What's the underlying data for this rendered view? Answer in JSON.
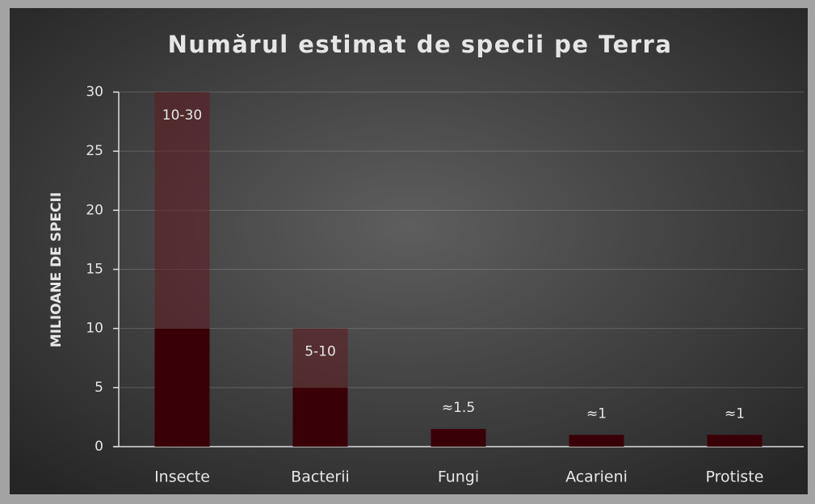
{
  "chart_data": {
    "type": "stacked_bar",
    "title": "Numărul estimat de specii pe Terra",
    "y_label": "MILIOANE DE SPECII",
    "categories": [
      "Insecte",
      "Bacterii",
      "Fungi",
      "Acarieni",
      "Protiste"
    ],
    "series": [
      {
        "color": "#3a0008",
        "values": [
          10,
          5,
          1.5,
          1,
          1
        ]
      },
      {
        "color": "rgba(95,25,30,0.55)",
        "values": [
          20,
          5,
          null,
          null,
          null
        ]
      }
    ],
    "data_labels": [
      "10-30",
      "5-10",
      "≈1.5",
      "≈1",
      "≈1"
    ],
    "ylim": [
      0,
      30
    ],
    "yticks": [
      0,
      5,
      10,
      15,
      20,
      25,
      30
    ],
    "grid": true
  }
}
